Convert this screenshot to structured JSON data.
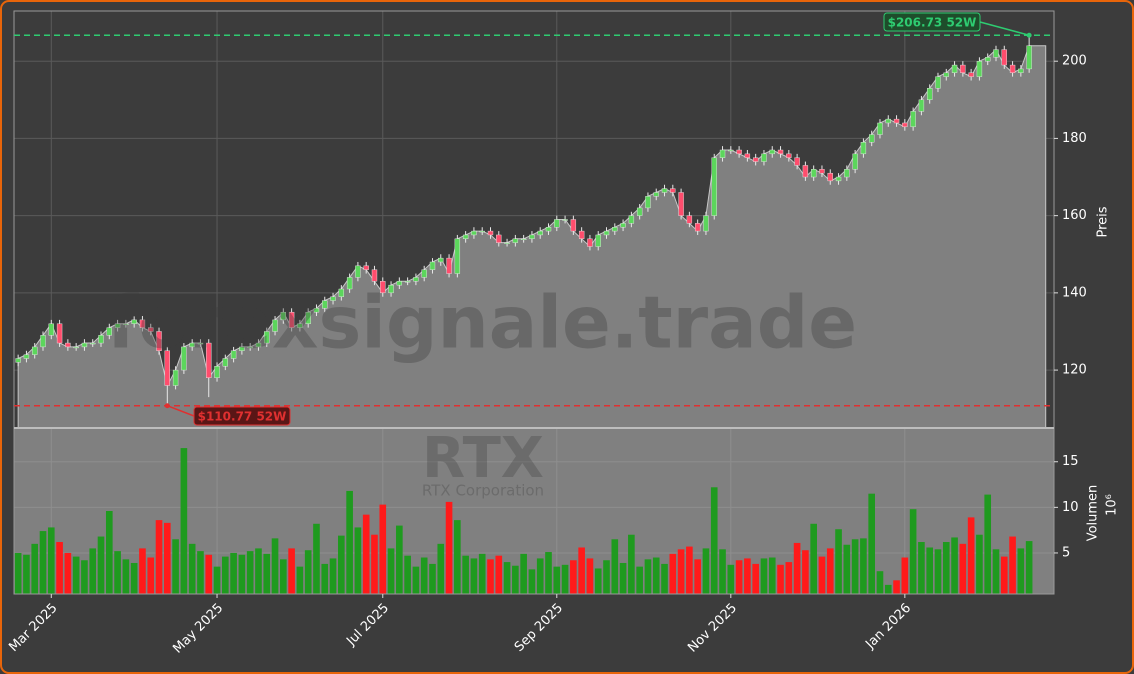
{
  "chart_data": {
    "type": "candlestick",
    "watermark": "forexsignale.trade",
    "symbol": "RTX",
    "company": "RTX Corporation",
    "ylabel": "Preis",
    "volume_label": "Volumen",
    "volume_unit": "10⁶",
    "xlim": [
      -0.5,
      125
    ],
    "xticks": [
      {
        "value": 4,
        "label": "Mar 2025"
      },
      {
        "value": 24,
        "label": "May 2025"
      },
      {
        "value": 44,
        "label": "Jul 2025"
      },
      {
        "value": 65,
        "label": "Sep 2025"
      },
      {
        "value": 86,
        "label": "Nov 2025"
      },
      {
        "value": 107,
        "label": "Jan 2026"
      }
    ],
    "ylim": [
      105,
      213
    ],
    "yticks": [
      120,
      140,
      160,
      180,
      200
    ],
    "volume_ylim": [
      0.5,
      18.7
    ],
    "volume_yticks": [
      5,
      10,
      15
    ],
    "grid": true,
    "up_color": "#5cd65c",
    "down_color": "#ff4d6d",
    "volume_up_color": "#1f9a1f",
    "volume_down_color": "#ff1a1a",
    "area_color": "#808080",
    "open": [
      122,
      123,
      124,
      126,
      129,
      132,
      127,
      126,
      126,
      127,
      127,
      129,
      131,
      132,
      132,
      133,
      131,
      130,
      125,
      116,
      120,
      126,
      127,
      127,
      118,
      121,
      123,
      125,
      126,
      126,
      127,
      130,
      133,
      135,
      131,
      132,
      135,
      136,
      138,
      139,
      141,
      144,
      147,
      146,
      143,
      140,
      142,
      143,
      143,
      144,
      146,
      148,
      149,
      145,
      154,
      155,
      156,
      156,
      155,
      153,
      153,
      154,
      154,
      155,
      156,
      157,
      159,
      159,
      156,
      154,
      152,
      155,
      156,
      157,
      158,
      160,
      162,
      165,
      166,
      167,
      166,
      160,
      158,
      156,
      160,
      175,
      177,
      177,
      176,
      175,
      174,
      176,
      177,
      176,
      175,
      173,
      170,
      172,
      171,
      169,
      170,
      172,
      176,
      179,
      181,
      184,
      185,
      184,
      183,
      187,
      190,
      193,
      196,
      197,
      199,
      197,
      196,
      200,
      201,
      203,
      199,
      197,
      198
    ],
    "high": [
      124,
      125,
      127,
      130,
      133,
      133,
      128,
      127,
      128,
      128,
      130,
      132,
      133,
      133,
      134,
      134,
      132,
      131,
      126,
      121,
      127,
      128,
      128,
      128,
      122,
      124,
      126,
      127,
      127,
      128,
      131,
      134,
      136,
      136,
      133,
      136,
      137,
      139,
      140,
      142,
      145,
      148,
      148,
      147,
      144,
      143,
      144,
      144,
      145,
      147,
      149,
      150,
      150,
      155,
      156,
      157,
      157,
      157,
      156,
      154,
      155,
      155,
      156,
      157,
      158,
      160,
      160,
      160,
      157,
      155,
      156,
      157,
      158,
      159,
      161,
      163,
      166,
      167,
      168,
      168,
      167,
      161,
      159,
      161,
      176,
      178,
      178,
      178,
      177,
      176,
      177,
      178,
      178,
      177,
      176,
      174,
      173,
      173,
      172,
      171,
      173,
      177,
      180,
      182,
      185,
      186,
      186,
      185,
      188,
      191,
      194,
      197,
      198,
      200,
      200,
      198,
      201,
      202,
      204,
      204,
      200,
      199,
      206.73
    ],
    "low": [
      121,
      122,
      123,
      125,
      128,
      126,
      125,
      125,
      125,
      126,
      126,
      128,
      130,
      131,
      131,
      130,
      129,
      124,
      110.77,
      115,
      119,
      125,
      126,
      113,
      117,
      120,
      122,
      124,
      125,
      125,
      126,
      129,
      132,
      130,
      130,
      131,
      134,
      135,
      137,
      138,
      140,
      143,
      145,
      142,
      139,
      139,
      141,
      142,
      142,
      143,
      145,
      147,
      144,
      144,
      153,
      154,
      155,
      154,
      152,
      152,
      152,
      153,
      153,
      154,
      155,
      156,
      158,
      155,
      153,
      151,
      151,
      154,
      155,
      156,
      157,
      159,
      161,
      164,
      165,
      165,
      159,
      157,
      155,
      155,
      159,
      174,
      176,
      175,
      174,
      173,
      173,
      175,
      175,
      174,
      172,
      169,
      169,
      170,
      168,
      168,
      169,
      171,
      175,
      178,
      180,
      183,
      183,
      182,
      182,
      186,
      189,
      192,
      195,
      196,
      196,
      195,
      195,
      199,
      200,
      198,
      196,
      196,
      197
    ],
    "close": [
      123,
      124,
      126,
      129,
      132,
      127,
      126,
      126,
      127,
      127,
      129,
      131,
      132,
      132,
      133,
      131,
      130,
      125,
      116,
      120,
      126,
      127,
      127,
      118,
      121,
      123,
      125,
      126,
      126,
      127,
      130,
      133,
      135,
      131,
      132,
      135,
      136,
      138,
      139,
      141,
      144,
      147,
      146,
      143,
      140,
      142,
      143,
      143,
      144,
      146,
      148,
      149,
      145,
      154,
      155,
      156,
      156,
      155,
      153,
      153,
      154,
      154,
      155,
      156,
      157,
      159,
      159,
      156,
      154,
      152,
      155,
      156,
      157,
      158,
      160,
      162,
      165,
      166,
      167,
      166,
      160,
      158,
      156,
      160,
      175,
      177,
      177,
      176,
      175,
      174,
      176,
      177,
      176,
      175,
      173,
      170,
      172,
      171,
      169,
      170,
      172,
      176,
      179,
      181,
      184,
      185,
      184,
      183,
      187,
      190,
      193,
      196,
      197,
      199,
      197,
      196,
      200,
      201,
      203,
      199,
      197,
      198,
      204
    ],
    "volume": [
      5.0,
      4.8,
      6.0,
      7.4,
      7.8,
      6.2,
      5.0,
      4.6,
      4.2,
      5.5,
      6.8,
      9.6,
      5.2,
      4.3,
      3.9,
      5.5,
      4.5,
      8.6,
      8.3,
      6.5,
      16.5,
      6.0,
      5.2,
      4.8,
      3.5,
      4.6,
      5.0,
      4.8,
      5.2,
      5.5,
      4.9,
      6.6,
      4.3,
      5.5,
      3.5,
      5.3,
      8.2,
      3.8,
      4.4,
      6.9,
      11.8,
      7.8,
      9.2,
      7.0,
      10.3,
      5.5,
      8.0,
      4.7,
      3.5,
      4.5,
      3.8,
      6.0,
      10.6,
      8.6,
      4.7,
      4.4,
      4.9,
      4.3,
      4.7,
      4.0,
      3.6,
      4.9,
      3.2,
      4.4,
      5.1,
      3.5,
      3.7,
      4.2,
      5.6,
      4.4,
      3.3,
      4.2,
      6.5,
      3.9,
      7.0,
      3.5,
      4.3,
      4.5,
      3.8,
      4.9,
      5.4,
      5.7,
      4.3,
      5.5,
      12.2,
      5.4,
      3.7,
      4.2,
      4.4,
      3.8,
      4.4,
      4.5,
      3.7,
      4.0,
      6.1,
      5.3,
      8.2,
      4.6,
      5.5,
      7.6,
      5.9,
      6.5,
      6.6,
      11.5,
      3.0,
      1.5,
      2.0,
      4.5,
      9.8,
      6.2,
      5.6,
      5.4,
      6.2,
      6.7,
      6.0,
      8.9,
      7.0,
      11.4,
      5.4,
      4.6,
      6.8,
      5.5,
      6.3
    ],
    "annotations": [
      {
        "label": "$206.73 52W",
        "value": 206.73,
        "x": 122,
        "color": "#2ecc71"
      },
      {
        "label": "$110.77 52W",
        "value": 110.77,
        "x": 18,
        "color": "#e03030"
      }
    ]
  }
}
